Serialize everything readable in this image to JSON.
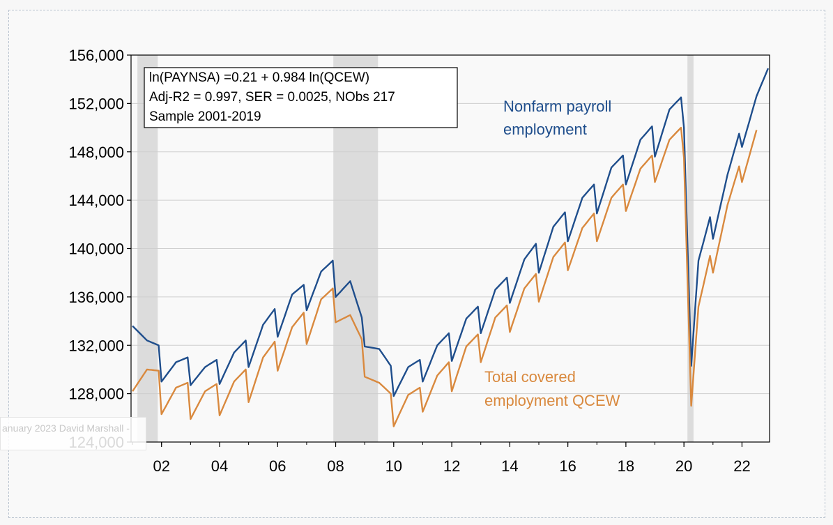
{
  "chart_data": {
    "type": "line",
    "title": "",
    "xlabel": "",
    "ylabel": "",
    "xlim": [
      2000.95,
      2022.95
    ],
    "ylim": [
      124000,
      156000
    ],
    "y_ticks": [
      124000,
      128000,
      132000,
      136000,
      140000,
      144000,
      148000,
      152000,
      156000
    ],
    "y_tick_labels": [
      "124,000",
      "128,000",
      "132,000",
      "136,000",
      "140,000",
      "144,000",
      "148,000",
      "152,000",
      "156,000"
    ],
    "x_ticks": [
      2002,
      2004,
      2006,
      2008,
      2010,
      2012,
      2014,
      2016,
      2018,
      2020,
      2022
    ],
    "x_tick_labels": [
      "02",
      "04",
      "06",
      "08",
      "10",
      "12",
      "14",
      "16",
      "18",
      "20",
      "22"
    ],
    "grid": "horizontal",
    "recessions": [
      [
        2001.17,
        2001.87
      ],
      [
        2007.92,
        2009.46
      ],
      [
        2020.12,
        2020.33
      ]
    ],
    "annotation": {
      "lines": [
        "ln(PAYNSA) =0.21 + 0.984 ln(QCEW)",
        "Adj-R2 = 0.997, SER = 0.0025, NObs 217",
        "Sample 2001-2019"
      ],
      "placement": "top-left"
    },
    "series": [
      {
        "name": "Nonfarm payroll employment",
        "label_lines": [
          "Nonfarm payroll",
          "employment"
        ],
        "color": "#1f4e8c",
        "annual_points": [
          [
            2001.0,
            133600
          ],
          [
            2001.5,
            132400
          ],
          [
            2001.9,
            132000
          ],
          [
            2002.0,
            129000
          ],
          [
            2002.5,
            130600
          ],
          [
            2002.9,
            131000
          ],
          [
            2003.0,
            128700
          ],
          [
            2003.5,
            130200
          ],
          [
            2003.9,
            130800
          ],
          [
            2004.0,
            128800
          ],
          [
            2004.5,
            131400
          ],
          [
            2004.9,
            132400
          ],
          [
            2005.0,
            130200
          ],
          [
            2005.5,
            133700
          ],
          [
            2005.9,
            135000
          ],
          [
            2006.0,
            132700
          ],
          [
            2006.5,
            136200
          ],
          [
            2006.9,
            137000
          ],
          [
            2007.0,
            134900
          ],
          [
            2007.5,
            138100
          ],
          [
            2007.9,
            139000
          ],
          [
            2008.0,
            136000
          ],
          [
            2008.5,
            137300
          ],
          [
            2008.9,
            134300
          ],
          [
            2009.0,
            131900
          ],
          [
            2009.5,
            131700
          ],
          [
            2009.9,
            130300
          ],
          [
            2010.0,
            127800
          ],
          [
            2010.5,
            130200
          ],
          [
            2010.9,
            130800
          ],
          [
            2011.0,
            129000
          ],
          [
            2011.5,
            132000
          ],
          [
            2011.9,
            133000
          ],
          [
            2012.0,
            130700
          ],
          [
            2012.5,
            134200
          ],
          [
            2012.9,
            135200
          ],
          [
            2013.0,
            133000
          ],
          [
            2013.5,
            136600
          ],
          [
            2013.9,
            137600
          ],
          [
            2014.0,
            135500
          ],
          [
            2014.5,
            139100
          ],
          [
            2014.9,
            140400
          ],
          [
            2015.0,
            138000
          ],
          [
            2015.5,
            141800
          ],
          [
            2015.9,
            143000
          ],
          [
            2016.0,
            140600
          ],
          [
            2016.5,
            144200
          ],
          [
            2016.9,
            145300
          ],
          [
            2017.0,
            142900
          ],
          [
            2017.5,
            146700
          ],
          [
            2017.9,
            147700
          ],
          [
            2018.0,
            145300
          ],
          [
            2018.5,
            149000
          ],
          [
            2018.9,
            150100
          ],
          [
            2019.0,
            147600
          ],
          [
            2019.5,
            151500
          ],
          [
            2019.9,
            152500
          ],
          [
            2020.0,
            150000
          ],
          [
            2020.25,
            130300
          ],
          [
            2020.5,
            139000
          ],
          [
            2020.9,
            142600
          ],
          [
            2021.0,
            140800
          ],
          [
            2021.5,
            146100
          ],
          [
            2021.9,
            149500
          ],
          [
            2022.0,
            148400
          ],
          [
            2022.5,
            152600
          ],
          [
            2022.9,
            154900
          ]
        ]
      },
      {
        "name": "Total covered employment QCEW",
        "label_lines": [
          "Total covered",
          "employment QCEW"
        ],
        "color": "#d9893e",
        "annual_points": [
          [
            2001.0,
            128200
          ],
          [
            2001.5,
            130000
          ],
          [
            2001.9,
            129900
          ],
          [
            2002.0,
            126300
          ],
          [
            2002.5,
            128500
          ],
          [
            2002.9,
            128900
          ],
          [
            2003.0,
            125900
          ],
          [
            2003.5,
            128200
          ],
          [
            2003.9,
            128800
          ],
          [
            2004.0,
            126200
          ],
          [
            2004.5,
            129000
          ],
          [
            2004.9,
            130000
          ],
          [
            2005.0,
            127300
          ],
          [
            2005.5,
            131000
          ],
          [
            2005.9,
            132300
          ],
          [
            2006.0,
            129900
          ],
          [
            2006.5,
            133500
          ],
          [
            2006.9,
            134700
          ],
          [
            2007.0,
            132100
          ],
          [
            2007.5,
            135800
          ],
          [
            2007.9,
            136700
          ],
          [
            2008.0,
            133900
          ],
          [
            2008.5,
            134500
          ],
          [
            2008.9,
            132500
          ],
          [
            2009.0,
            129400
          ],
          [
            2009.5,
            128900
          ],
          [
            2009.9,
            128000
          ],
          [
            2010.0,
            125300
          ],
          [
            2010.5,
            127900
          ],
          [
            2010.9,
            128500
          ],
          [
            2011.0,
            126500
          ],
          [
            2011.5,
            129500
          ],
          [
            2011.9,
            130600
          ],
          [
            2012.0,
            128200
          ],
          [
            2012.5,
            131900
          ],
          [
            2012.9,
            132900
          ],
          [
            2013.0,
            130600
          ],
          [
            2013.5,
            134300
          ],
          [
            2013.9,
            135300
          ],
          [
            2014.0,
            133100
          ],
          [
            2014.5,
            136700
          ],
          [
            2014.9,
            137900
          ],
          [
            2015.0,
            135600
          ],
          [
            2015.5,
            139300
          ],
          [
            2015.9,
            140500
          ],
          [
            2016.0,
            138200
          ],
          [
            2016.5,
            141700
          ],
          [
            2016.9,
            142900
          ],
          [
            2017.0,
            140600
          ],
          [
            2017.5,
            144200
          ],
          [
            2017.9,
            145300
          ],
          [
            2018.0,
            143100
          ],
          [
            2018.5,
            146600
          ],
          [
            2018.9,
            147700
          ],
          [
            2019.0,
            145500
          ],
          [
            2019.5,
            149000
          ],
          [
            2019.9,
            150000
          ],
          [
            2020.0,
            147500
          ],
          [
            2020.25,
            127000
          ],
          [
            2020.5,
            135200
          ],
          [
            2020.9,
            139400
          ],
          [
            2021.0,
            138000
          ],
          [
            2021.5,
            143600
          ],
          [
            2021.9,
            146800
          ],
          [
            2022.0,
            145500
          ],
          [
            2022.5,
            149800
          ]
        ]
      }
    ]
  },
  "watermark": "anuary 2023 David Marshall -"
}
